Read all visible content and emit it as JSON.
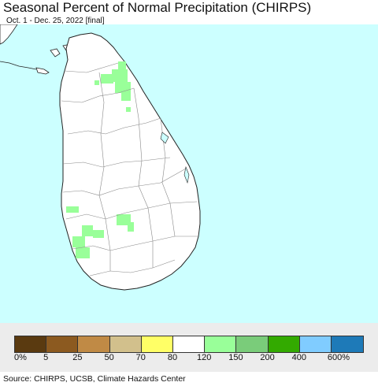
{
  "title": "Seasonal Percent of Normal Precipitation (CHIRPS)",
  "subtitle": "Oct. 1 - Dec. 25, 2022 [final]",
  "colors": {
    "ocean": "#ccffff",
    "land": "#ffffff",
    "border": "#222222",
    "district_line": "#888888",
    "wet_120_150": "#99ff99"
  },
  "legend": {
    "colors": [
      "#5a3a10",
      "#8c5a20",
      "#c08a45",
      "#d2c08c",
      "#ffff66",
      "#ffffff",
      "#99ff99",
      "#7acc7a",
      "#33aa00",
      "#80ccff",
      "#1e7ab8"
    ],
    "labels": [
      "0%",
      "5",
      "25",
      "50",
      "70",
      "80",
      "120",
      "150",
      "200",
      "400",
      "600%"
    ]
  },
  "source": "Source: CHIRPS, UCSB, Climate Hazards Center"
}
